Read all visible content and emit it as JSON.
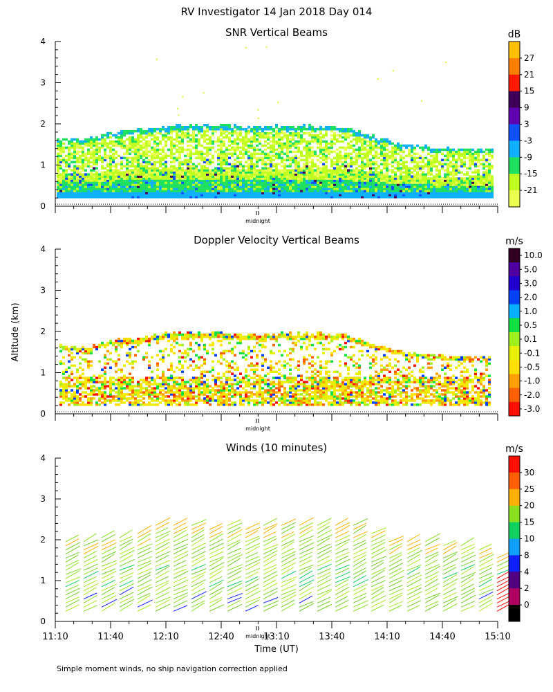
{
  "figure": {
    "title": "RV Investigator  14 Jan 2018 Day 014",
    "ylabel": "Altitude (km)",
    "xlabel": "Time (UT)",
    "footnote": "Simple moment winds, no ship navigation correction applied"
  },
  "chart_data": [
    {
      "type": "heatmap",
      "title": "SNR Vertical Beams",
      "ylabel": "Altitude (km)",
      "ylim": [
        0,
        4
      ],
      "yticks": [
        "0",
        "1",
        "2",
        "3",
        "4"
      ],
      "marker_label": "midnight",
      "colorbar": {
        "unit": "dB",
        "labels": [
          "27",
          "21",
          "15",
          "9",
          "3",
          "-3",
          "-9",
          "-15",
          "-21"
        ],
        "colors": [
          "#ffc000",
          "#ff8000",
          "#ff1a00",
          "#40005a",
          "#6000b0",
          "#1050ff",
          "#10b0ff",
          "#20e060",
          "#c0ff20",
          "#eaff50"
        ]
      },
      "top_height_km": [
        {
          "time": "11:10",
          "km": 1.62
        },
        {
          "time": "11:40",
          "km": 1.68
        },
        {
          "time": "12:10",
          "km": 1.95
        },
        {
          "time": "12:40",
          "km": 1.9
        },
        {
          "time": "13:10",
          "km": 1.92
        },
        {
          "time": "13:40",
          "km": 1.95
        },
        {
          "time": "14:10",
          "km": 1.5
        },
        {
          "time": "14:40",
          "km": 1.35
        },
        {
          "time": "15:10",
          "km": 1.35
        }
      ]
    },
    {
      "type": "heatmap",
      "title": "Doppler Velocity Vertical Beams",
      "ylabel": "Altitude (km)",
      "ylim": [
        0,
        4
      ],
      "yticks": [
        "0",
        "1",
        "2",
        "3",
        "4"
      ],
      "marker_label": "midnight",
      "colorbar": {
        "unit": "m/s",
        "labels": [
          "10.0",
          "5.0",
          "3.0",
          "2.0",
          "1.0",
          "0.5",
          "0.1",
          "-0.1",
          "-0.5",
          "-1.0",
          "-2.0",
          "-3.0"
        ],
        "colors": [
          "#300020",
          "#5000a0",
          "#2000d0",
          "#0040ff",
          "#00b0ff",
          "#10e040",
          "#a0f020",
          "#e8f000",
          "#ffe000",
          "#ffa000",
          "#ff6000",
          "#ff1000"
        ]
      }
    },
    {
      "type": "scatter",
      "title": "Winds (10 minutes)",
      "ylabel": "Altitude (km)",
      "ylim": [
        0,
        4
      ],
      "yticks": [
        "0",
        "1",
        "2",
        "3",
        "4"
      ],
      "xlim": [
        "11:10",
        "15:10"
      ],
      "xticks": [
        "11:10",
        "11:40",
        "12:10",
        "12:40",
        "13:10",
        "13:40",
        "14:10",
        "14:40",
        "15:10"
      ],
      "marker_label": "midnight",
      "profile_top_km": [
        2.0,
        2.0,
        2.1,
        2.15,
        2.2,
        2.45,
        2.45,
        2.45,
        2.35,
        2.4,
        2.35,
        2.4,
        2.4,
        2.45,
        2.45,
        2.4,
        2.4,
        2.25,
        2.0,
        2.0,
        2.0,
        1.95,
        1.95,
        1.8,
        1.65
      ],
      "colorbar": {
        "unit": "m/s",
        "labels": [
          "30",
          "25",
          "20",
          "15",
          "10",
          "8",
          "4",
          "2",
          "0"
        ],
        "colors": [
          "#ff1000",
          "#ff6000",
          "#ffb000",
          "#88e020",
          "#10d060",
          "#10a0ff",
          "#1020ff",
          "#500080",
          "#b00060",
          "#000000"
        ]
      }
    }
  ]
}
